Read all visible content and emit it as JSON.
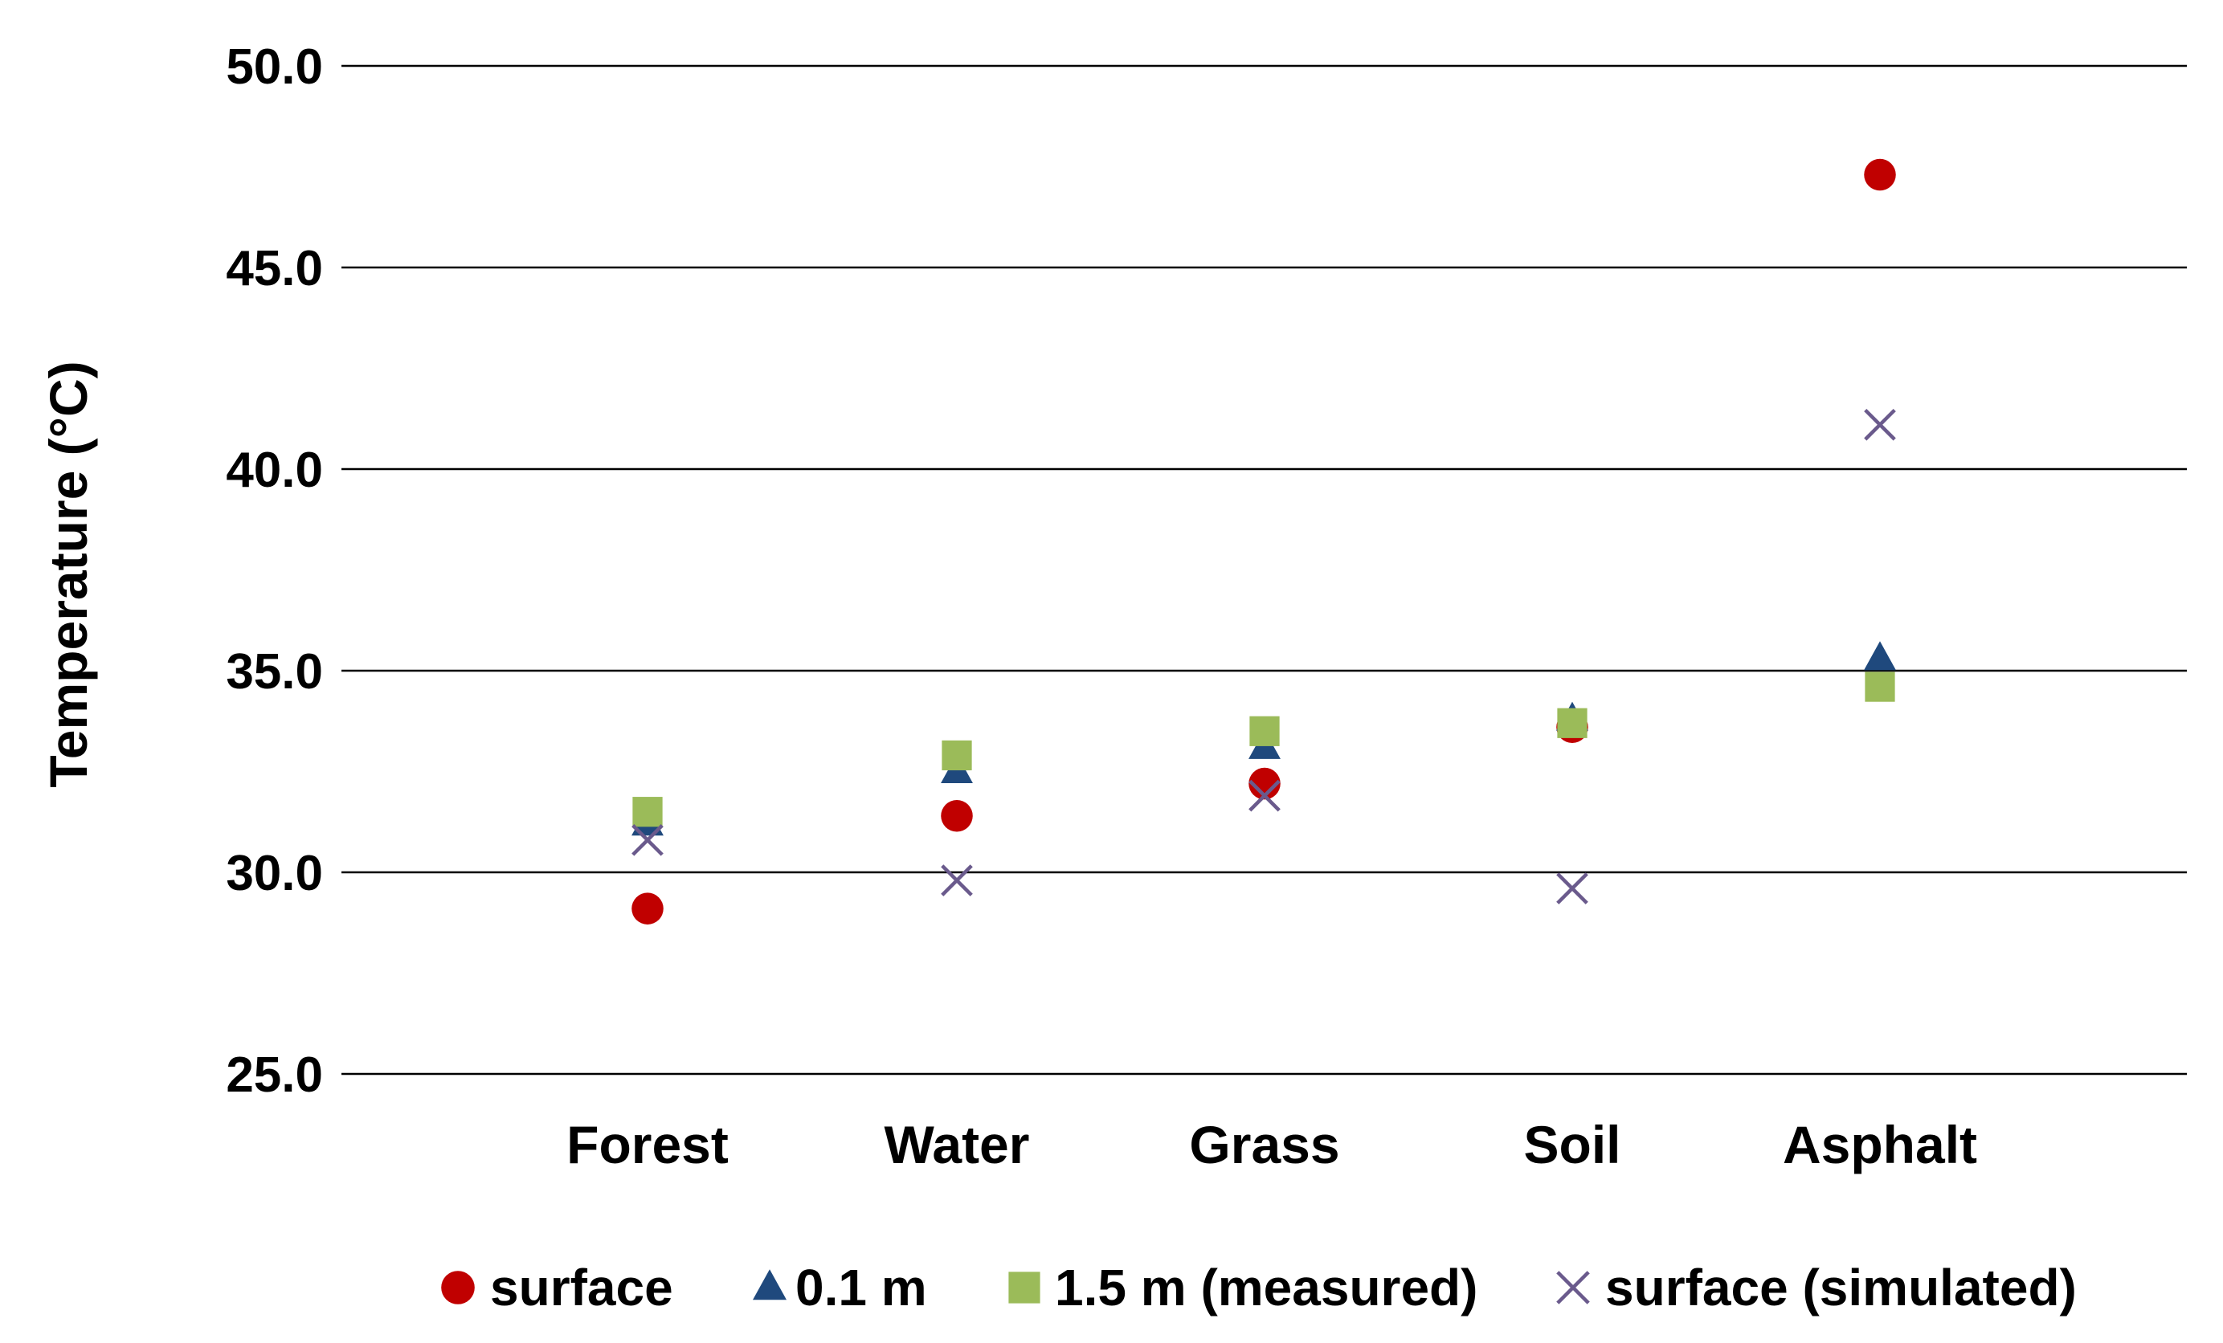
{
  "chart_data": {
    "type": "scatter",
    "title": "",
    "xlabel": "",
    "ylabel": "Temperature (°C)",
    "ylim": [
      25.0,
      50.0
    ],
    "yticks": [
      "25.0",
      "30.0",
      "35.0",
      "40.0",
      "45.0",
      "50.0"
    ],
    "grid": true,
    "legend_position": "bottom",
    "categories": [
      "Forest",
      "Water",
      "Grass",
      "Soil",
      "Asphalt"
    ],
    "series": [
      {
        "name": "surface",
        "marker": "circle",
        "color": "#c00000",
        "values": [
          29.1,
          31.4,
          32.2,
          33.6,
          47.3
        ]
      },
      {
        "name": "0.1 m",
        "marker": "triangle",
        "color": "#1f497d",
        "values": [
          31.2,
          32.5,
          33.1,
          33.8,
          35.3
        ]
      },
      {
        "name": "1.5 m (measured)",
        "marker": "square",
        "color": "#9bbb59",
        "values": [
          31.5,
          32.9,
          33.5,
          33.7,
          34.6
        ]
      },
      {
        "name": "surface (simulated)",
        "marker": "x",
        "color": "#6a5a8c",
        "values": [
          30.8,
          29.8,
          31.9,
          29.6,
          41.1
        ]
      }
    ]
  }
}
